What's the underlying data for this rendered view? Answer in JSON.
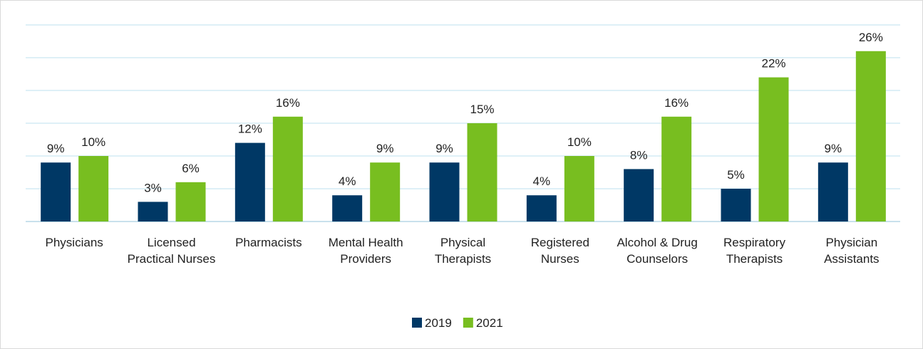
{
  "chart_data": {
    "type": "bar",
    "categories": [
      "Physicians",
      "Licensed Practical Nurses",
      "Pharmacists",
      "Mental Health Providers",
      "Physical Therapists",
      "Registered Nurses",
      "Alcohol & Drug Counselors",
      "Respiratory Therapists",
      "Physician Assistants"
    ],
    "series": [
      {
        "name": "2019",
        "color": "#003865",
        "values": [
          9,
          3,
          12,
          4,
          9,
          4,
          8,
          5,
          9
        ],
        "value_labels": [
          "9%",
          "3%",
          "12%",
          "4%",
          "9%",
          "4%",
          "8%",
          "5%",
          "9%"
        ]
      },
      {
        "name": "2021",
        "color": "#78be20",
        "values": [
          10,
          6,
          16,
          9,
          15,
          10,
          16,
          22,
          26
        ],
        "value_labels": [
          "10%",
          "6%",
          "16%",
          "9%",
          "15%",
          "10%",
          "16%",
          "22%",
          "26%"
        ]
      }
    ],
    "ylim": [
      0,
      30
    ],
    "yticks": [
      0,
      5,
      10,
      15,
      20,
      25,
      30
    ],
    "grid": true,
    "legend": "bottom"
  }
}
